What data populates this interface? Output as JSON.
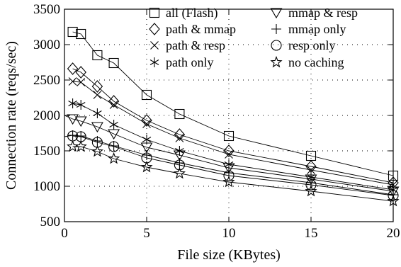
{
  "chart_data": {
    "type": "line",
    "xlabel": "File size (KBytes)",
    "ylabel": "Connection rate (reqs/sec)",
    "xlim": [
      0,
      20
    ],
    "ylim": [
      500,
      3500
    ],
    "xticks": [
      0,
      5,
      10,
      15,
      20
    ],
    "yticks": [
      500,
      1000,
      1500,
      2000,
      2500,
      3000,
      3500
    ],
    "grid": true,
    "legend_position": "top-right",
    "x": [
      0.5,
      1,
      2,
      3,
      5,
      7,
      10,
      15,
      20
    ],
    "series": [
      {
        "name": "all (Flash)",
        "marker": "square",
        "x0": 0.5,
        "y0": 3180,
        "values": [
          3180,
          3150,
          2850,
          2740,
          2290,
          2020,
          1710,
          1430,
          1150
        ]
      },
      {
        "name": "path & mmap",
        "marker": "diamond",
        "x0": 0.5,
        "y0": 2660,
        "values": [
          2660,
          2610,
          2410,
          2200,
          1930,
          1730,
          1500,
          1280,
          1050
        ]
      },
      {
        "name": "path & resp",
        "marker": "x",
        "x0": 0.5,
        "y0": 2480,
        "values": [
          2480,
          2470,
          2290,
          2150,
          1880,
          1680,
          1450,
          1230,
          1020
        ]
      },
      {
        "name": "path only",
        "marker": "asterisk",
        "x0": 0.5,
        "y0": 2170,
        "values": [
          2170,
          2150,
          2030,
          1870,
          1660,
          1500,
          1310,
          1130,
          950
        ]
      },
      {
        "name": "mmap & resp",
        "marker": "triangle-down",
        "x0": 0,
        "y0": 2000,
        "values": [
          1950,
          1920,
          1840,
          1740,
          1550,
          1440,
          1260,
          1100,
          930
        ]
      },
      {
        "name": "mmap only",
        "marker": "plus",
        "x0": 0,
        "y0": 1700,
        "values": [
          1720,
          1710,
          1640,
          1570,
          1440,
          1330,
          1190,
          1050,
          880
        ]
      },
      {
        "name": "resp only",
        "marker": "circle",
        "x0": 0.5,
        "y0": 1710,
        "values": [
          1710,
          1700,
          1620,
          1560,
          1400,
          1300,
          1150,
          1020,
          870
        ]
      },
      {
        "name": "no caching",
        "marker": "star",
        "x0": 0.5,
        "y0": 1560,
        "values": [
          1560,
          1560,
          1490,
          1390,
          1270,
          1180,
          1060,
          930,
          790
        ]
      }
    ]
  }
}
